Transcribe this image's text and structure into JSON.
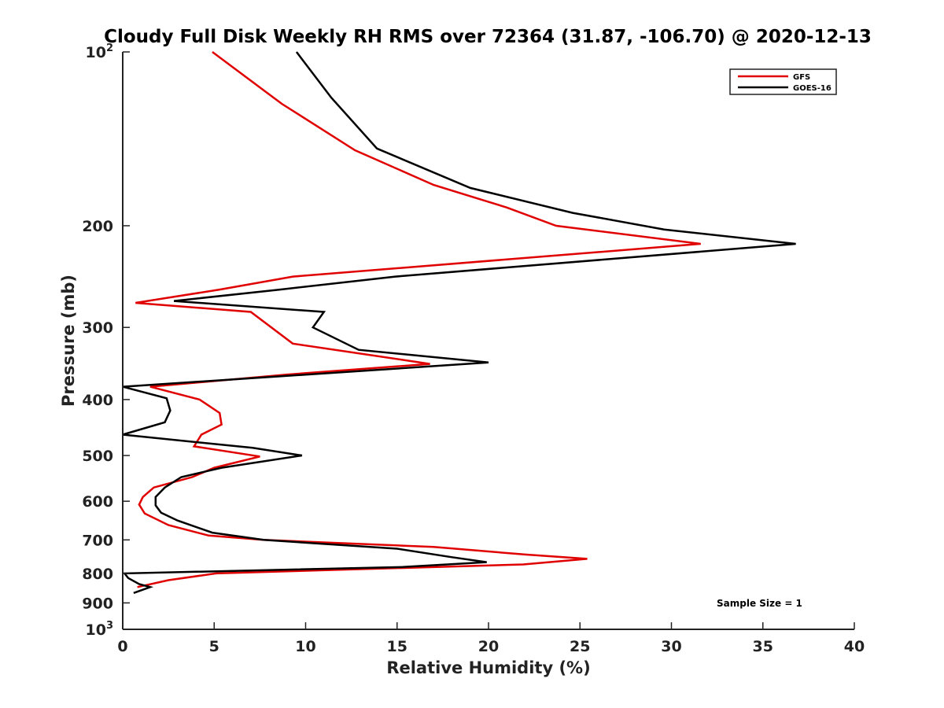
{
  "chart_data": {
    "type": "line",
    "title": "Cloudy Full Disk Weekly RH RMS over 72364 (31.87, -106.70) @ 2020-12-13",
    "xlabel": "Relative Humidity (%)",
    "ylabel": "Pressure (mb)",
    "xlim": [
      0,
      40
    ],
    "ylim": [
      100,
      1000
    ],
    "y_scale": "log",
    "y_reversed": true,
    "grid": false,
    "legend_position": "top-right",
    "x_ticks": [
      0,
      5,
      10,
      15,
      20,
      25,
      30,
      35,
      40
    ],
    "y_ticks": [
      {
        "value": 100,
        "base": "10",
        "exp": "2"
      },
      {
        "value": 200,
        "label": "200"
      },
      {
        "value": 300,
        "label": "300"
      },
      {
        "value": 400,
        "label": "400"
      },
      {
        "value": 500,
        "label": "500"
      },
      {
        "value": 600,
        "label": "600"
      },
      {
        "value": 700,
        "label": "700"
      },
      {
        "value": 800,
        "label": "800"
      },
      {
        "value": 900,
        "label": "900"
      },
      {
        "value": 1000,
        "base": "10",
        "exp": "3"
      }
    ],
    "annotation": "Sample Size = 1",
    "series": [
      {
        "name": "GFS",
        "color": "#e00000",
        "x": [
          4.9,
          8.7,
          12.7,
          17.0,
          21.0,
          23.7,
          31.6,
          9.3,
          5.3,
          0.7,
          7.0,
          9.3,
          16.8,
          9.0,
          1.5,
          4.2,
          5.3,
          5.4,
          4.3,
          3.9,
          7.5,
          5.0,
          3.8,
          1.7,
          1.1,
          0.9,
          1.2,
          2.5,
          4.7,
          7.7,
          17.0,
          22.0,
          25.4,
          21.9,
          5.1,
          2.5,
          0.8
        ],
        "y": [
          100,
          123,
          148,
          170,
          186,
          200,
          215,
          245,
          258,
          272,
          282,
          320,
          347,
          362,
          380,
          400,
          422,
          442,
          460,
          482,
          502,
          525,
          545,
          568,
          590,
          608,
          630,
          660,
          688,
          700,
          720,
          742,
          755,
          772,
          800,
          822,
          845
        ]
      },
      {
        "name": "GOES-16",
        "color": "#000000",
        "x": [
          9.5,
          11.4,
          13.9,
          19.0,
          24.6,
          29.6,
          36.8,
          14.9,
          8.6,
          2.8,
          11.0,
          10.4,
          12.9,
          20.0,
          0.0,
          2.4,
          2.6,
          2.3,
          0.0,
          7.1,
          9.8,
          5.4,
          3.2,
          2.3,
          1.8,
          1.8,
          2.1,
          3.0,
          4.9,
          7.7,
          15.0,
          18.0,
          19.9,
          15.3,
          0.1,
          0.3,
          0.9,
          1.5,
          0.6
        ],
        "y": [
          100,
          120,
          147,
          172,
          190,
          203,
          215,
          245,
          258,
          270,
          282,
          300,
          328,
          345,
          380,
          398,
          418,
          438,
          460,
          485,
          500,
          525,
          545,
          568,
          590,
          610,
          628,
          648,
          680,
          700,
          725,
          750,
          765,
          780,
          800,
          815,
          835,
          845,
          865
        ]
      }
    ]
  }
}
